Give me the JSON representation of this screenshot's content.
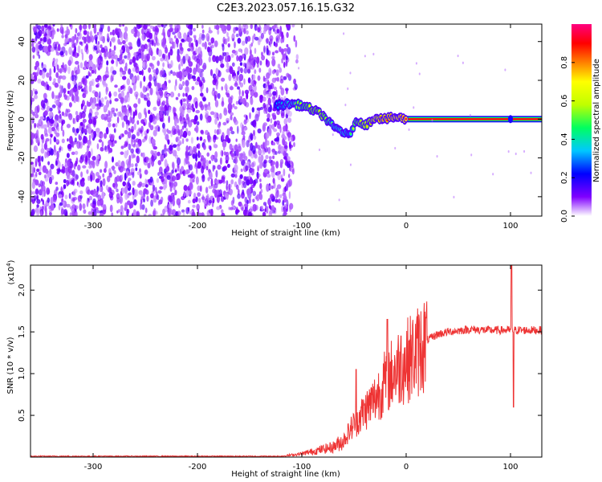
{
  "title": "C2E3.2023.057.16.15.G32",
  "chart_data": [
    {
      "type": "heatmap",
      "xlabel": "Height of straight line (km)",
      "ylabel": "Frequency (Hz)",
      "xlim": [
        -360,
        130
      ],
      "ylim": [
        -50,
        49
      ],
      "xticks": [
        -300,
        -200,
        -100,
        0,
        100
      ],
      "yticks": [
        -40,
        -20,
        0,
        20,
        40
      ],
      "grid": false,
      "colorbar": {
        "label": "Normalized spectral amplitude",
        "range": [
          0.0,
          1.0
        ],
        "ticks": [
          0.0,
          0.2,
          0.4,
          0.6,
          0.8
        ],
        "colormap": [
          "#ffffff",
          "#8000ff",
          "#0000ff",
          "#00c8ff",
          "#00ff60",
          "#c0ff00",
          "#ffff00",
          "#ff8000",
          "#ff0000",
          "#ff0080"
        ]
      },
      "noise_region_x": [
        -360,
        -112
      ],
      "signal_trace": [
        {
          "x": -125,
          "freq": 7,
          "amp": 0.3
        },
        {
          "x": -110,
          "freq": 8,
          "amp": 0.5
        },
        {
          "x": -100,
          "freq": 7,
          "amp": 0.6
        },
        {
          "x": -90,
          "freq": 5,
          "amp": 0.7
        },
        {
          "x": -80,
          "freq": 2,
          "amp": 0.7
        },
        {
          "x": -70,
          "freq": -4,
          "amp": 0.5
        },
        {
          "x": -62,
          "freq": -6,
          "amp": 0.5
        },
        {
          "x": -55,
          "freq": -9,
          "amp": 0.4
        },
        {
          "x": -50,
          "freq": -3,
          "amp": 0.6
        },
        {
          "x": -45,
          "freq": -1,
          "amp": 0.7
        },
        {
          "x": -38,
          "freq": -3,
          "amp": 0.7
        },
        {
          "x": -30,
          "freq": 1,
          "amp": 0.8
        },
        {
          "x": -20,
          "freq": 0,
          "amp": 0.85
        },
        {
          "x": -10,
          "freq": 1,
          "amp": 0.9
        },
        {
          "x": 0,
          "freq": 0,
          "amp": 0.95
        },
        {
          "x": 50,
          "freq": 0,
          "amp": 0.98
        },
        {
          "x": 100,
          "freq": 0,
          "amp": 0.98
        },
        {
          "x": 130,
          "freq": 0,
          "amp": 0.98
        }
      ]
    },
    {
      "type": "line",
      "xlabel": "Height of straight line (km)",
      "ylabel": "SNR (10 * v/v)",
      "yscale_label": "(x10",
      "yscale_exp": "4",
      "yscale_close": ")",
      "xlim": [
        -360,
        130
      ],
      "ylim": [
        0,
        2.3
      ],
      "xticks": [
        -300,
        -200,
        -100,
        0,
        100
      ],
      "yticks": [
        0.5,
        1.0,
        1.5,
        2.0
      ],
      "ytick_labels": [
        "0.5",
        "1.0",
        "1.5",
        "2.0"
      ],
      "grid": false,
      "series_color": "#ee3333",
      "baseline": 0.01,
      "envelope": [
        {
          "x": -360,
          "y": 0.01
        },
        {
          "x": -120,
          "y": 0.01
        },
        {
          "x": -100,
          "y": 0.04
        },
        {
          "x": -85,
          "y": 0.08
        },
        {
          "x": -70,
          "y": 0.12
        },
        {
          "x": -60,
          "y": 0.2
        },
        {
          "x": -50,
          "y": 0.4
        },
        {
          "x": -40,
          "y": 0.55
        },
        {
          "x": -30,
          "y": 0.7
        },
        {
          "x": -20,
          "y": 0.9
        },
        {
          "x": -10,
          "y": 1.05
        },
        {
          "x": 0,
          "y": 1.15
        },
        {
          "x": 10,
          "y": 1.25
        },
        {
          "x": 20,
          "y": 1.4
        },
        {
          "x": 30,
          "y": 1.47
        },
        {
          "x": 40,
          "y": 1.5
        },
        {
          "x": 60,
          "y": 1.53
        },
        {
          "x": 80,
          "y": 1.52
        },
        {
          "x": 100,
          "y": 1.52
        },
        {
          "x": 130,
          "y": 1.52
        }
      ],
      "spikes": [
        {
          "x": -48,
          "y": 1.05
        },
        {
          "x": -18,
          "y": 1.65
        },
        {
          "x": -5,
          "y": 1.45
        },
        {
          "x": 101,
          "y": 2.3
        },
        {
          "x": 103,
          "y": 0.6
        }
      ]
    }
  ]
}
